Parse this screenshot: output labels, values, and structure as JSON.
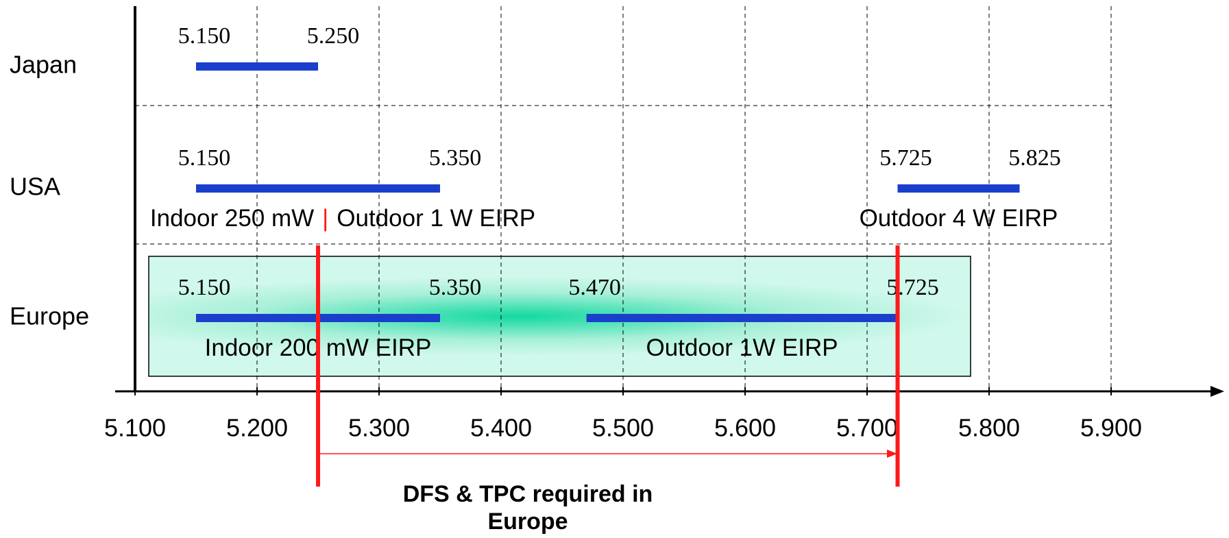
{
  "chart_data": {
    "type": "range",
    "xlim": [
      5.1,
      5.9
    ],
    "xticks": [
      {
        "value": 5.1,
        "label": "5.100"
      },
      {
        "value": 5.2,
        "label": "5.200"
      },
      {
        "value": 5.3,
        "label": "5.300"
      },
      {
        "value": 5.4,
        "label": "5.400"
      },
      {
        "value": 5.5,
        "label": "5.500"
      },
      {
        "value": 5.6,
        "label": "5.600"
      },
      {
        "value": 5.7,
        "label": "5.700"
      },
      {
        "value": 5.8,
        "label": "5.800"
      },
      {
        "value": 5.9,
        "label": "5.900"
      }
    ],
    "grid": true,
    "color": "#1a3fcc",
    "rows": [
      {
        "name": "Japan",
        "bands": [
          {
            "start": {
              "value": 5.15,
              "label": "5.150"
            },
            "end": {
              "value": 5.25,
              "label": "5.250"
            },
            "note": []
          }
        ]
      },
      {
        "name": "USA",
        "bands": [
          {
            "start": {
              "value": 5.15,
              "label": "5.150"
            },
            "end": {
              "value": 5.35,
              "label": "5.350"
            },
            "note": [
              "Indoor 250 mW",
              "|",
              "Outdoor 1 W EIRP"
            ]
          },
          {
            "start": {
              "value": 5.725,
              "label": "5.725"
            },
            "end": {
              "value": 5.825,
              "label": "5.825"
            },
            "note": [
              "Outdoor 4 W EIRP"
            ]
          }
        ]
      },
      {
        "name": "Europe",
        "bands": [
          {
            "start": {
              "value": 5.15,
              "label": "5.150"
            },
            "end": {
              "value": 5.35,
              "label": "5.350"
            },
            "note": [
              "Indoor 200 mW EIRP"
            ]
          },
          {
            "start": {
              "value": 5.47,
              "label": "5.470"
            },
            "end": {
              "value": 5.725,
              "label": "5.725"
            },
            "note": [
              "Outdoor 1W EIRP"
            ]
          }
        ]
      }
    ],
    "markers": [
      5.25,
      5.725
    ],
    "marker_color": "#ff1a1a",
    "annotation": [
      "DFS & TPC required in",
      "Europe"
    ]
  }
}
